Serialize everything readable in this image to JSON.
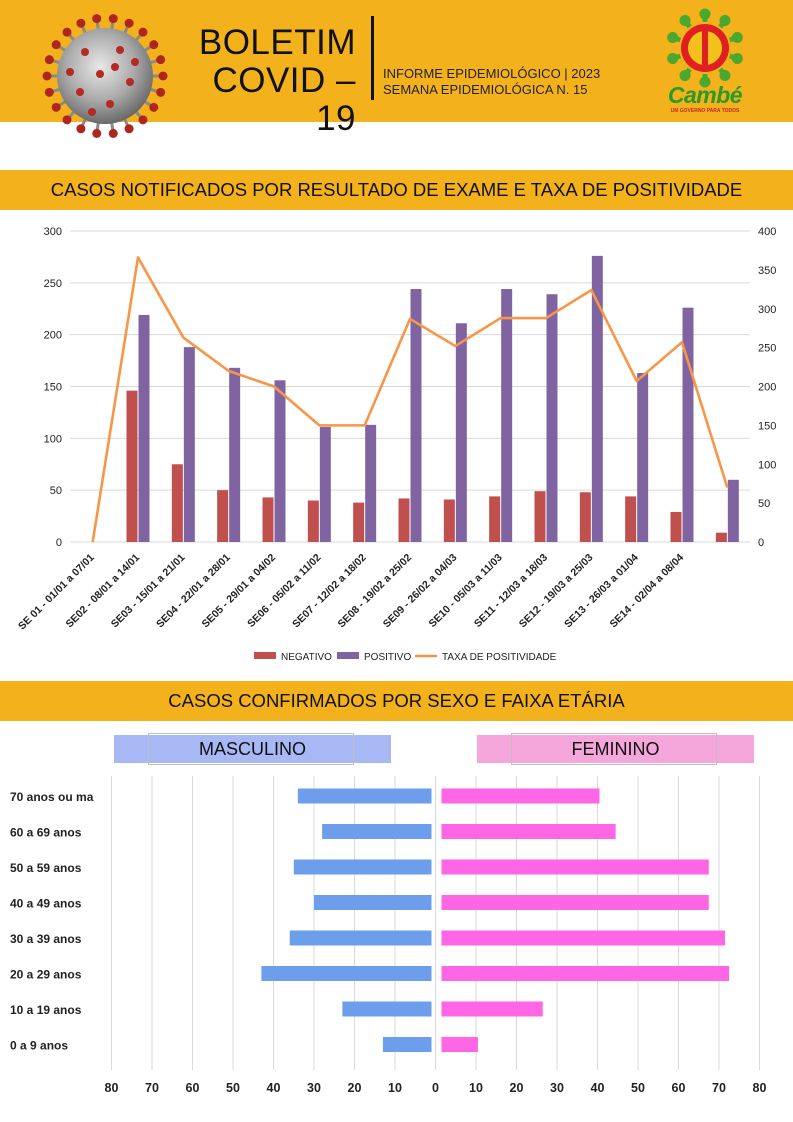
{
  "header": {
    "title_line1": "BOLETIM",
    "title_line2": "COVID – 19",
    "info_line1": "INFORME EPIDEMIOLÓGICO | 2023",
    "info_line2": "SEMANA EPIDEMIOLÓGICA  N. 15",
    "logo_name": "Cambé",
    "logo_tagline": "UM GOVERNO PARA TODOS"
  },
  "section1": {
    "title": "CASOS NOTIFICADOS POR RESULTADO DE EXAME E TAXA DE POSITIVIDADE"
  },
  "section2": {
    "title": "CASOS CONFIRMADOS POR SEXO E FAIXA ETÁRIA"
  },
  "colors": {
    "band": "#f3b11b",
    "negativo": "#c0504d",
    "positivo": "#8064a2",
    "taxa": "#f79646",
    "masculino": "#6d9eeb",
    "feminino": "#ff66e6"
  },
  "chart_data": [
    {
      "type": "bar",
      "categories": [
        "SE 01 - 01/01 a 07/01",
        "SE02 - 08/01 a 14/01",
        "SE03 - 15/01 a 21/01",
        "SE04 - 22/01 a 28/01",
        "SE05 - 29/01 a 04/02",
        "SE06 - 05/02 a 11/02",
        "SE07 - 12/02 a 18/02",
        "SE08 - 19/02 a 25/02",
        "SE09 - 26/02 a 04/03",
        "SE10 - 05/03 a 11/03",
        "SE11 - 12/03 a 18/03",
        "SE12 - 19/03 a 25/03",
        "SE13 - 26/03 a 01/04",
        "SE14 - 02/04 a 08/04",
        ""
      ],
      "series": [
        {
          "name": "NEGATIVO",
          "axis": "left",
          "values": [
            0,
            146,
            75,
            50,
            43,
            40,
            38,
            42,
            41,
            44,
            49,
            48,
            44,
            29,
            9
          ]
        },
        {
          "name": "POSITIVO",
          "axis": "left",
          "values": [
            0,
            219,
            188,
            168,
            156,
            111,
            113,
            244,
            211,
            244,
            239,
            276,
            163,
            226,
            60
          ]
        },
        {
          "name": "TAXA DE POSITIVIDADE",
          "type": "line",
          "axis": "right",
          "values": [
            0,
            366,
            263,
            220,
            200,
            150,
            150,
            287,
            252,
            288,
            288,
            324,
            207,
            257,
            70
          ]
        }
      ],
      "ylim": [
        0,
        300
      ],
      "y_ticks": [
        0,
        50,
        100,
        150,
        200,
        250,
        300
      ],
      "y2lim": [
        0,
        400
      ],
      "y2_ticks": [
        0,
        50,
        100,
        150,
        200,
        250,
        300,
        350,
        400
      ],
      "legend": "bottom",
      "grid": true
    },
    {
      "type": "bar",
      "orientation": "horizontal",
      "categories": [
        "70 anos ou ma",
        "60 a 69 anos",
        "50 a 59 anos",
        "40 a 49 anos",
        "30 a 39 anos",
        "20 a 29 anos",
        "10 a 19 anos",
        "0 a 9 anos"
      ],
      "series": [
        {
          "name": "MASCULINO",
          "values": [
            33,
            27,
            34,
            29,
            35,
            42,
            22,
            12
          ]
        },
        {
          "name": "FEMININO",
          "values": [
            39,
            43,
            66,
            66,
            70,
            71,
            25,
            9
          ]
        }
      ],
      "xlim": [
        -80,
        80
      ],
      "x_tick_labels": [
        "80",
        "70",
        "60",
        "50",
        "40",
        "30",
        "20",
        "10",
        "0",
        "10",
        "20",
        "30",
        "40",
        "50",
        "60",
        "70",
        "80"
      ],
      "grid": true
    }
  ]
}
